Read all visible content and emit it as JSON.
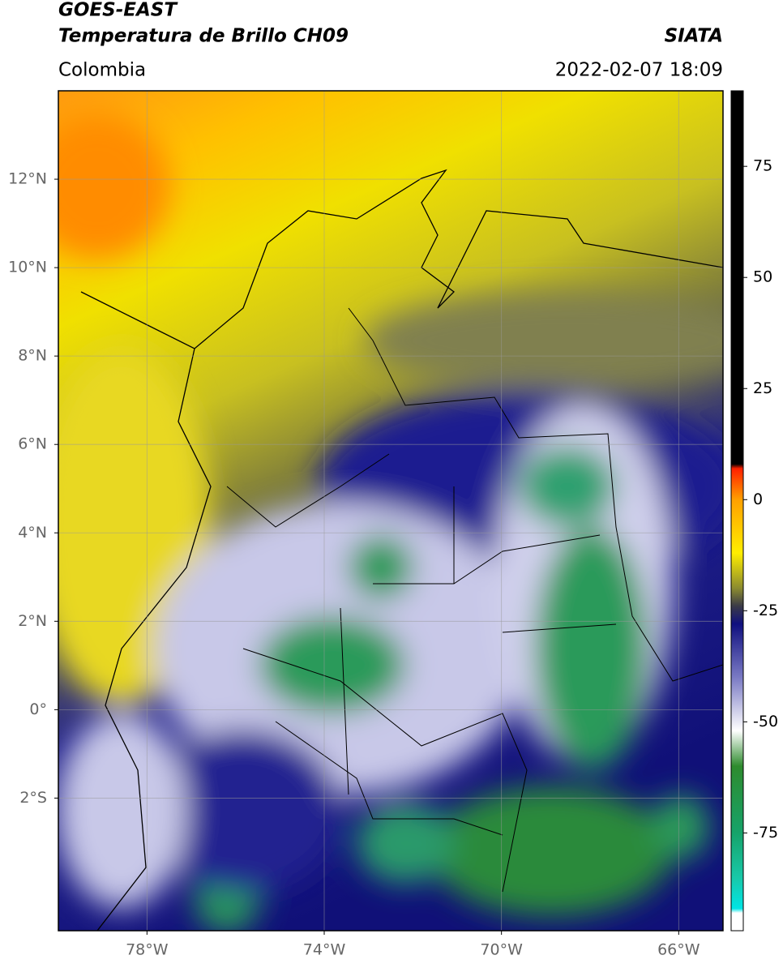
{
  "header": {
    "satellite": "GOES-EAST",
    "product": "Temperatura de Brillo CH09",
    "source": "SIATA",
    "region": "Colombia",
    "datetime": "2022-02-07 18:09"
  },
  "map": {
    "xlim": [
      -80,
      -65
    ],
    "ylim": [
      -5,
      14
    ],
    "grid": true,
    "xticks": [
      {
        "value": -78,
        "label": "78°W"
      },
      {
        "value": -74,
        "label": "74°W"
      },
      {
        "value": -70,
        "label": "70°W"
      },
      {
        "value": -66,
        "label": "66°W"
      }
    ],
    "yticks": [
      {
        "value": 12,
        "label": "12°N"
      },
      {
        "value": 10,
        "label": "10°N"
      },
      {
        "value": 8,
        "label": "8°N"
      },
      {
        "value": 6,
        "label": "6°N"
      },
      {
        "value": 4,
        "label": "4°N"
      },
      {
        "value": 2,
        "label": "2°N"
      },
      {
        "value": 0,
        "label": "0°"
      },
      {
        "value": -2,
        "label": "2°S"
      }
    ]
  },
  "colorbar": {
    "lim": [
      -97,
      92
    ],
    "ticks": [
      75,
      50,
      25,
      0,
      -25,
      -50,
      -75
    ],
    "stops": [
      {
        "value": -97,
        "color": "#ffffff"
      },
      {
        "value": -93,
        "color": "#ffffff"
      },
      {
        "value": -92,
        "color": "#00e5e5"
      },
      {
        "value": -85,
        "color": "#19c8a8"
      },
      {
        "value": -75,
        "color": "#16a36a"
      },
      {
        "value": -60,
        "color": "#2e8b2e"
      },
      {
        "value": -52,
        "color": "#ffffff"
      },
      {
        "value": -40,
        "color": "#7a7ac4"
      },
      {
        "value": -28,
        "color": "#101080"
      },
      {
        "value": -24,
        "color": "#3a3a48"
      },
      {
        "value": -20,
        "color": "#8a8a30"
      },
      {
        "value": -12,
        "color": "#ffee00"
      },
      {
        "value": 0,
        "color": "#ffa000"
      },
      {
        "value": 7,
        "color": "#ff2000"
      },
      {
        "value": 8,
        "color": "#000000"
      },
      {
        "value": 92,
        "color": "#000000"
      }
    ]
  }
}
